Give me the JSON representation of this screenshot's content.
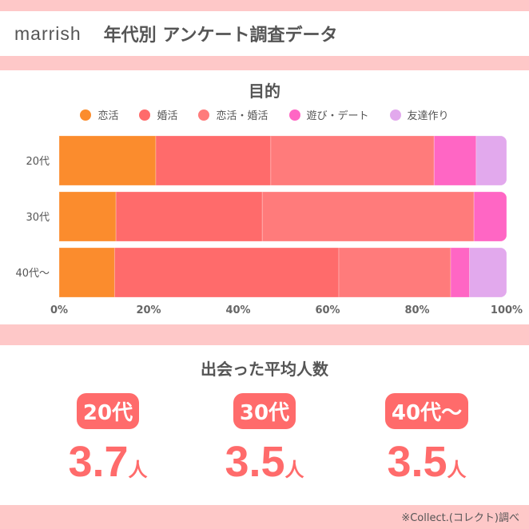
{
  "header": {
    "logo": "marrish",
    "title": "年代別 アンケート調査データ"
  },
  "chart_data": {
    "type": "bar",
    "orientation": "horizontal",
    "stacked": true,
    "title": "目的",
    "categories": [
      "20代",
      "30代",
      "40代〜"
    ],
    "series": [
      {
        "name": "恋活",
        "color": "#fb8c2d",
        "values": [
          21.6,
          12.7,
          12.4
        ]
      },
      {
        "name": "婚活",
        "color": "#ff6b6b",
        "values": [
          25.7,
          32.7,
          50.1
        ]
      },
      {
        "name": "恋活・婚活",
        "color": "#ff7b7b",
        "values": [
          36.5,
          47.3,
          25.0
        ]
      },
      {
        "name": "遊び・デート",
        "color": "#ff66c4",
        "values": [
          9.4,
          7.3,
          4.2
        ]
      },
      {
        "name": "友達作り",
        "color": "#e2a9ed",
        "values": [
          6.8,
          0,
          8.3
        ]
      }
    ],
    "xlim": [
      0,
      100
    ],
    "xticks": [
      "0%",
      "20%",
      "40%",
      "60%",
      "80%",
      "100%"
    ],
    "legend": "top"
  },
  "averages": {
    "title": "出会った平均人数",
    "unit": "人",
    "items": [
      {
        "age": "20代",
        "value": "3.7"
      },
      {
        "age": "30代",
        "value": "3.5"
      },
      {
        "age": "40代〜",
        "value": "3.5"
      }
    ]
  },
  "source": "※Collect.(コレクト)調べ"
}
